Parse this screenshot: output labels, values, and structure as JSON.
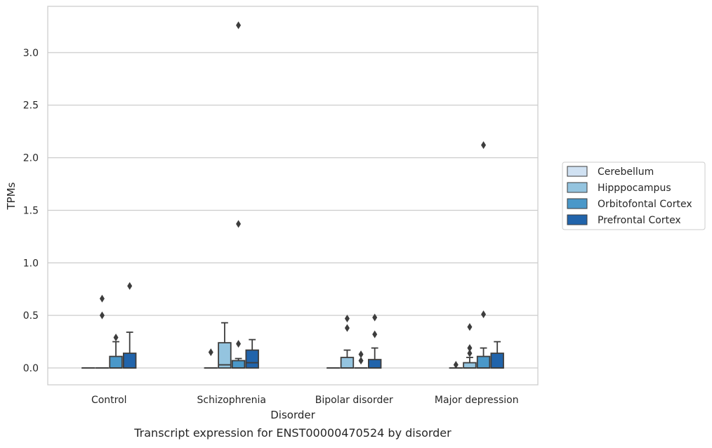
{
  "chart_data": {
    "type": "box",
    "caption": "Transcript expression for ENST00000470524 by disorder",
    "xlabel": "Disorder",
    "ylabel": "TPMs",
    "ylim": [
      -0.16,
      3.44
    ],
    "yticks": [
      0.0,
      0.5,
      1.0,
      1.5,
      2.0,
      2.5,
      3.0
    ],
    "ytick_labels": [
      "0.0",
      "0.5",
      "1.0",
      "1.5",
      "2.0",
      "2.5",
      "3.0"
    ],
    "grid": "horizontal",
    "legend_position": "right",
    "categories": [
      "Control",
      "Schizophrenia",
      "Bipolar disorder",
      "Major depression"
    ],
    "series": [
      {
        "name": "Cerebellum",
        "color": "#d0e1f2",
        "boxes": [
          {
            "q1": 0.0,
            "median": 0.0,
            "q3": 0.0,
            "whislo": 0.0,
            "whishi": 0.0,
            "fliers": []
          },
          {
            "q1": 0.0,
            "median": 0.0,
            "q3": 0.0,
            "whislo": 0.0,
            "whishi": 0.0,
            "fliers": [
              0.15
            ]
          },
          {
            "q1": 0.0,
            "median": 0.0,
            "q3": 0.0,
            "whislo": 0.0,
            "whishi": 0.0,
            "fliers": []
          },
          {
            "q1": 0.0,
            "median": 0.0,
            "q3": 0.0,
            "whislo": 0.0,
            "whishi": 0.0,
            "fliers": [
              0.03
            ]
          }
        ]
      },
      {
        "name": "Hipppocampus",
        "color": "#94c4df",
        "boxes": [
          {
            "q1": 0.0,
            "median": 0.0,
            "q3": 0.0,
            "whislo": 0.0,
            "whishi": 0.0,
            "fliers": [
              0.5,
              0.66
            ]
          },
          {
            "q1": 0.0,
            "median": 0.03,
            "q3": 0.24,
            "whislo": 0.0,
            "whishi": 0.43,
            "fliers": []
          },
          {
            "q1": 0.0,
            "median": 0.0,
            "q3": 0.1,
            "whislo": 0.0,
            "whishi": 0.17,
            "fliers": [
              0.38,
              0.47
            ]
          },
          {
            "q1": 0.0,
            "median": 0.0,
            "q3": 0.05,
            "whislo": 0.0,
            "whishi": 0.1,
            "fliers": [
              0.14,
              0.19,
              0.39
            ]
          }
        ]
      },
      {
        "name": "Orbitofontal Cortex",
        "color": "#4a98c9",
        "boxes": [
          {
            "q1": 0.0,
            "median": 0.0,
            "q3": 0.11,
            "whislo": 0.0,
            "whishi": 0.25,
            "fliers": [
              0.29
            ]
          },
          {
            "q1": 0.0,
            "median": 0.0,
            "q3": 0.07,
            "whislo": 0.0,
            "whishi": 0.09,
            "fliers": [
              0.23,
              1.37,
              3.26
            ]
          },
          {
            "q1": 0.0,
            "median": 0.0,
            "q3": 0.0,
            "whislo": 0.0,
            "whishi": 0.0,
            "fliers": [
              0.07,
              0.13
            ]
          },
          {
            "q1": 0.0,
            "median": 0.0,
            "q3": 0.11,
            "whislo": 0.0,
            "whishi": 0.19,
            "fliers": [
              0.51,
              2.12
            ]
          }
        ]
      },
      {
        "name": "Prefrontal Cortex",
        "color": "#2164ab",
        "boxes": [
          {
            "q1": 0.0,
            "median": 0.0,
            "q3": 0.14,
            "whislo": 0.0,
            "whishi": 0.34,
            "fliers": [
              0.78
            ]
          },
          {
            "q1": 0.0,
            "median": 0.05,
            "q3": 0.17,
            "whislo": 0.0,
            "whishi": 0.27,
            "fliers": []
          },
          {
            "q1": 0.0,
            "median": 0.0,
            "q3": 0.08,
            "whislo": 0.0,
            "whishi": 0.19,
            "fliers": [
              0.32,
              0.48
            ]
          },
          {
            "q1": 0.0,
            "median": 0.0,
            "q3": 0.14,
            "whislo": 0.0,
            "whishi": 0.25,
            "fliers": []
          }
        ]
      }
    ]
  }
}
